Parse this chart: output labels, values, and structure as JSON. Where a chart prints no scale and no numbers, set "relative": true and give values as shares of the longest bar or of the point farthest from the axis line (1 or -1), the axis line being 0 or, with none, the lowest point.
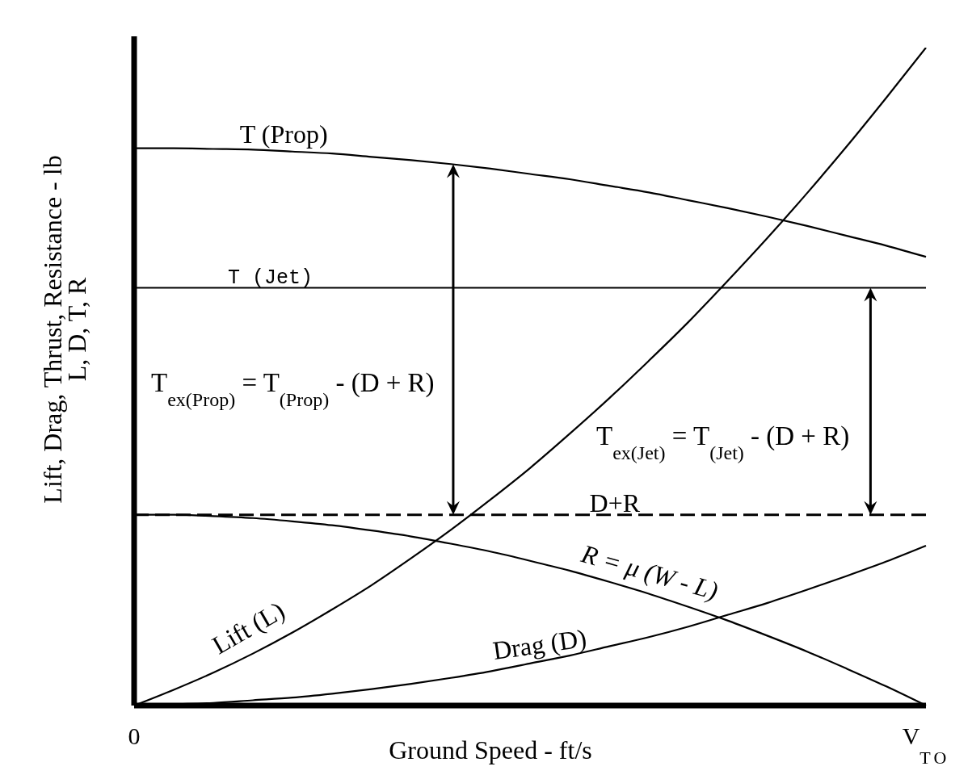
{
  "chart_data": {
    "type": "line",
    "xlabel": "Ground Speed - ft/s",
    "ylabel": "Lift, Drag, Thrust, Resistance - lb\nL, D, T, R",
    "relative": true,
    "tick_labels": "x",
    "marker": "none",
    "line_style": "solid",
    "categories": [
      "0",
      null,
      null,
      null,
      null,
      null,
      null,
      null,
      null,
      null,
      null,
      null,
      null,
      null,
      null,
      null,
      null,
      null,
      null,
      null,
      "V$_{TO}$"
    ],
    "series": [
      {
        "name": "T (Prop)",
        "color": "#000000",
        "values": [
          0.847,
          0.847,
          0.846,
          0.845,
          0.842,
          0.839,
          0.834,
          0.829,
          0.823,
          0.816,
          0.808,
          0.8,
          0.79,
          0.78,
          0.768,
          0.756,
          0.743,
          0.729,
          0.714,
          0.699,
          0.682
        ]
      },
      {
        "name": "T (Jet)",
        "color": "#000000",
        "values": [
          0.635,
          0.635,
          0.635,
          0.635,
          0.635,
          0.635,
          0.635,
          0.635,
          0.635,
          0.635,
          0.635,
          0.635,
          0.635,
          0.635,
          0.635,
          0.635,
          0.635,
          0.635,
          0.635,
          0.635,
          0.635
        ]
      },
      {
        "name": "D+R",
        "color": "#000000",
        "line_style": "dashed",
        "values": [
          0.29,
          0.29,
          0.29,
          0.29,
          0.29,
          0.29,
          0.29,
          0.29,
          0.29,
          0.29,
          0.29,
          0.29,
          0.29,
          0.29,
          0.29,
          0.29,
          0.29,
          0.29,
          0.29,
          0.29,
          0.29
        ]
      },
      {
        "name": "Lift (L)",
        "color": "#000000",
        "values": [
          0,
          0.024,
          0.05,
          0.079,
          0.111,
          0.146,
          0.183,
          0.224,
          0.267,
          0.313,
          0.361,
          0.413,
          0.467,
          0.524,
          0.583,
          0.646,
          0.711,
          0.779,
          0.85,
          0.924,
          1
        ]
      },
      {
        "name": "Drag (D)",
        "color": "#000000",
        "values": [
          0,
          0.002,
          0.004,
          0.008,
          0.012,
          0.018,
          0.025,
          0.033,
          0.042,
          0.052,
          0.064,
          0.076,
          0.09,
          0.104,
          0.12,
          0.138,
          0.156,
          0.176,
          0.197,
          0.219,
          0.243
        ]
      },
      {
        "name": "R = μ (W - L)",
        "color": "#000000",
        "values": [
          0.29,
          0.29,
          0.288,
          0.285,
          0.28,
          0.274,
          0.266,
          0.257,
          0.246,
          0.234,
          0.22,
          0.205,
          0.188,
          0.17,
          0.15,
          0.129,
          0.106,
          0.082,
          0.056,
          0.029,
          0
        ]
      }
    ],
    "annotations": [
      "T$_{ex(Prop)}$ = T$_{(Prop)}$ - (D + R)",
      "T$_{ex(Jet)}$ = T$_{(Jet)}$ - (D + R)"
    ]
  }
}
